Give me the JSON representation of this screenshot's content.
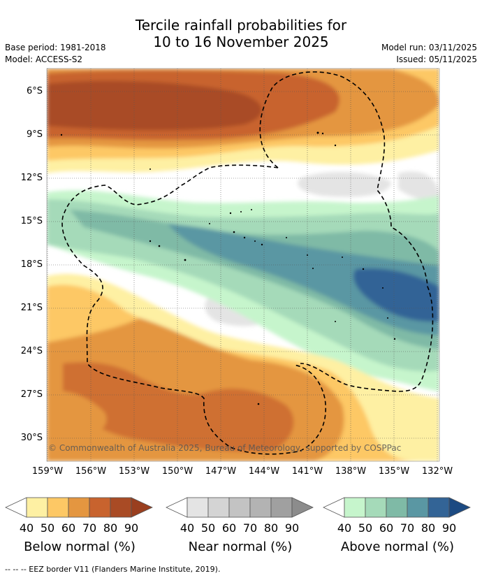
{
  "title": {
    "line1": "Tercile rainfall probabilities for",
    "line2": "10 to 16 November 2025"
  },
  "meta_left": {
    "base_period": "Base period: 1981-2018",
    "model": "Model: ACCESS-S2"
  },
  "meta_right": {
    "model_run": "Model run: 03/11/2025",
    "issued": "Issued: 05/11/2025"
  },
  "map": {
    "lat_labels": [
      "6°S",
      "9°S",
      "12°S",
      "15°S",
      "18°S",
      "21°S",
      "24°S",
      "27°S",
      "30°S"
    ],
    "lon_labels": [
      "159°W",
      "156°W",
      "153°W",
      "150°W",
      "147°W",
      "144°W",
      "141°W",
      "138°W",
      "135°W",
      "132°W"
    ],
    "copyright": "© Commonwealth of Australia 2025, Bureau of Meteorology, supported by COSPPac"
  },
  "colorbars": [
    {
      "name": "below",
      "title": "Below normal (%)",
      "ticks": [
        "40",
        "50",
        "60",
        "70",
        "80",
        "90"
      ],
      "colors": [
        "#fef0a3",
        "#fdc865",
        "#e49640",
        "#c8632e",
        "#a94b25"
      ]
    },
    {
      "name": "near",
      "title": "Near normal (%)",
      "ticks": [
        "40",
        "50",
        "60",
        "70",
        "80",
        "90"
      ],
      "colors": [
        "#e4e4e4",
        "#d4d4d4",
        "#c3c3c3",
        "#b3b3b3",
        "#a0a0a0"
      ]
    },
    {
      "name": "above",
      "title": "Above normal (%)",
      "ticks": [
        "40",
        "50",
        "60",
        "70",
        "80",
        "90"
      ],
      "colors": [
        "#c6f5cc",
        "#a5dab9",
        "#7fbaa6",
        "#5a97a3",
        "#336496"
      ]
    }
  ],
  "footnote": "--  --  -- EEZ border V11 (Flanders Marine Institute, 2019)."
}
